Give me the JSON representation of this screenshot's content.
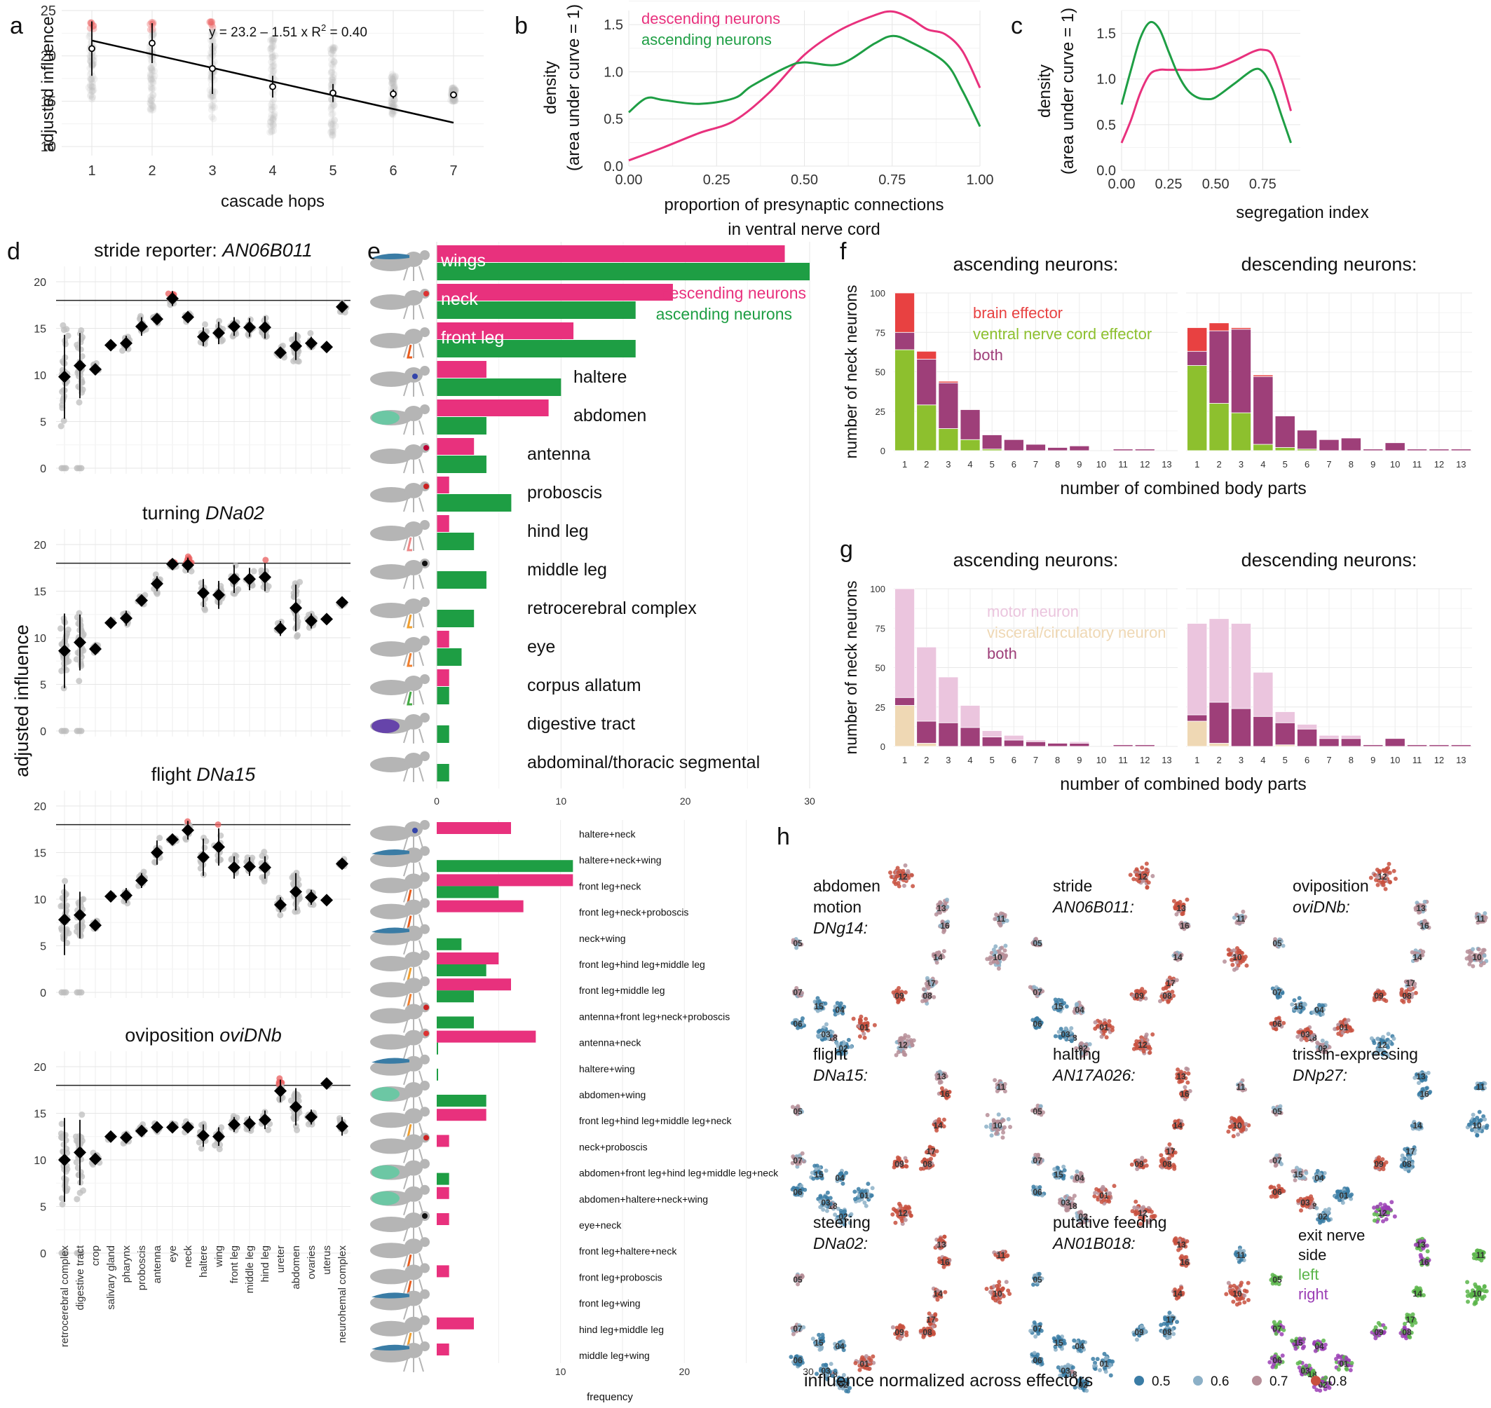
{
  "colors": {
    "descending": "#E8317D",
    "ascending": "#1E9E44",
    "brain_effector": "#E84141",
    "vnc_effector": "#8DC02E",
    "both": "#9E3F79",
    "motor": "#EBC5DE",
    "visceral": "#EFD8B4",
    "points_gray": "#bdbdbd",
    "points_red": "#EA5E5E",
    "umap_05": "#3A7CA5",
    "umap_06": "#8CB0C7",
    "umap_07": "#B68E98",
    "umap_08": "#C8503E",
    "left": "#5BB54A",
    "right": "#9B3FB5"
  },
  "panel_letters": [
    "a",
    "b",
    "c",
    "d",
    "e",
    "f",
    "g",
    "h"
  ],
  "chart_data": [
    {
      "id": "a",
      "type": "scatter",
      "xlabel": "cascade hops",
      "ylabel": "adjusted influence",
      "annotation": {
        "pre": "y = 23.2 – 1.51 x   R",
        "sup": "2",
        "post": " = 0.40"
      },
      "x": [
        1,
        2,
        3,
        4,
        5,
        6,
        7
      ],
      "means": [
        20.8,
        21.4,
        18.6,
        16.6,
        15.9,
        15.8,
        15.7
      ],
      "err": [
        3.0,
        2.2,
        2.8,
        1.2,
        1.0,
        0.5,
        0.3
      ],
      "fit": {
        "intercept": 23.2,
        "slope": -1.51
      },
      "xlim": [
        0.5,
        7.5
      ],
      "ylim": [
        9,
        25
      ],
      "yticks": [
        10,
        15,
        20,
        25
      ]
    },
    {
      "id": "b",
      "type": "line",
      "xlabel": "proportion of presynaptic connections",
      "xlabel2": "in ventral nerve cord",
      "ylabel": "density",
      "ylabel2": "(area under curve = 1)",
      "xlim": [
        0,
        1
      ],
      "ylim": [
        0,
        1.65
      ],
      "xticks": [
        "0.00",
        "0.25",
        "0.50",
        "0.75",
        "1.00"
      ],
      "yticks": [
        "0.0",
        "0.5",
        "1.0",
        "1.5"
      ],
      "series": [
        {
          "name": "descending neurons",
          "x": [
            0,
            0.1,
            0.2,
            0.3,
            0.4,
            0.5,
            0.6,
            0.7,
            0.75,
            0.8,
            0.85,
            0.9,
            0.95,
            1.0
          ],
          "y": [
            0.06,
            0.2,
            0.35,
            0.48,
            0.78,
            1.18,
            1.44,
            1.6,
            1.64,
            1.57,
            1.45,
            1.4,
            1.22,
            0.83
          ]
        },
        {
          "name": "ascending neurons",
          "x": [
            0,
            0.05,
            0.1,
            0.2,
            0.3,
            0.35,
            0.45,
            0.5,
            0.6,
            0.7,
            0.75,
            0.8,
            0.9,
            0.95,
            1.0
          ],
          "y": [
            0.57,
            0.72,
            0.7,
            0.66,
            0.72,
            0.85,
            1.05,
            1.1,
            1.08,
            1.3,
            1.38,
            1.32,
            1.1,
            0.8,
            0.42
          ]
        }
      ]
    },
    {
      "id": "c",
      "type": "line",
      "xlabel": "segregation index",
      "ylabel": "density",
      "ylabel2": "(area under curve = 1)",
      "xlim": [
        0,
        0.95
      ],
      "ylim": [
        0,
        1.75
      ],
      "xticks": [
        "0.00",
        "0.25",
        "0.50",
        "0.75"
      ],
      "yticks": [
        "0.0",
        "0.5",
        "1.0",
        "1.5"
      ],
      "series": [
        {
          "name": "descending",
          "x": [
            0,
            0.05,
            0.1,
            0.15,
            0.2,
            0.25,
            0.3,
            0.4,
            0.5,
            0.6,
            0.7,
            0.75,
            0.8,
            0.85,
            0.9
          ],
          "y": [
            0.3,
            0.55,
            0.85,
            1.05,
            1.1,
            1.1,
            1.1,
            1.1,
            1.12,
            1.2,
            1.3,
            1.32,
            1.27,
            1.0,
            0.65
          ]
        },
        {
          "name": "ascending",
          "x": [
            0,
            0.05,
            0.1,
            0.15,
            0.2,
            0.25,
            0.3,
            0.35,
            0.4,
            0.45,
            0.5,
            0.6,
            0.7,
            0.75,
            0.8,
            0.85,
            0.9
          ],
          "y": [
            0.72,
            1.1,
            1.45,
            1.62,
            1.55,
            1.3,
            1.05,
            0.88,
            0.8,
            0.78,
            0.8,
            0.95,
            1.1,
            1.08,
            0.9,
            0.6,
            0.3
          ]
        }
      ]
    },
    {
      "id": "d",
      "type": "scatter",
      "ylabel": "adjusted influence",
      "threshold": 18,
      "ylim": [
        0,
        20
      ],
      "yticks": [
        0,
        5,
        10,
        15,
        20
      ],
      "categories": [
        "retrocerebral complex",
        "digestive tract",
        "crop",
        "salivary gland",
        "pharynx",
        "proboscis",
        "antenna",
        "eye",
        "neck",
        "haltere",
        "wing",
        "front leg",
        "middle leg",
        "hind leg",
        "ureter",
        "abdomen",
        "ovaries",
        "uterus",
        "neurohemal complex"
      ],
      "plots": [
        {
          "title_plain": "stride reporter: ",
          "title_italic": "AN06B011",
          "means": [
            9.8,
            11.0,
            10.6,
            13.2,
            13.4,
            15.2,
            16.0,
            18.2,
            16.2,
            14.1,
            14.5,
            15.2,
            15.1,
            15.1,
            12.4,
            13.1,
            13.4,
            13.0,
            17.3
          ],
          "err": [
            4.5,
            3.5,
            0.6,
            0,
            0.8,
            1.0,
            0.5,
            0.8,
            0.4,
            1.0,
            1.2,
            1.0,
            1.0,
            1.2,
            0.6,
            1.5,
            0.7,
            0,
            0.5
          ]
        },
        {
          "title_plain": "turning ",
          "title_italic": "DNa02",
          "means": [
            8.6,
            9.5,
            8.8,
            11.6,
            12.1,
            14.0,
            15.8,
            17.9,
            17.8,
            14.8,
            14.6,
            16.3,
            16.3,
            16.5,
            11.0,
            13.2,
            11.8,
            12.0,
            13.8
          ],
          "err": [
            4.0,
            3.0,
            0.5,
            0,
            0.8,
            0.6,
            0.8,
            0.3,
            0.8,
            1.5,
            1.5,
            1.5,
            1.2,
            1.5,
            0.8,
            2.5,
            0.8,
            0,
            0.3
          ]
        },
        {
          "title_plain": "flight ",
          "title_italic": "DNa15",
          "means": [
            7.8,
            8.3,
            7.2,
            10.3,
            10.4,
            12.0,
            15.0,
            16.4,
            17.4,
            14.5,
            15.6,
            13.4,
            13.5,
            13.4,
            9.4,
            10.8,
            10.2,
            9.9,
            13.8
          ],
          "err": [
            3.8,
            2.5,
            0.5,
            0,
            0.8,
            0.8,
            1.3,
            0.3,
            1.0,
            2.0,
            2.0,
            1.2,
            1.0,
            1.2,
            0.8,
            2.0,
            0.8,
            0,
            0.3
          ]
        },
        {
          "title_plain": "oviposition ",
          "title_italic": "oviDNb",
          "means": [
            10.0,
            10.8,
            10.1,
            12.5,
            12.4,
            13.1,
            13.5,
            13.5,
            13.5,
            12.6,
            12.5,
            13.8,
            13.9,
            14.3,
            17.4,
            15.7,
            14.6,
            18.2,
            13.6
          ],
          "err": [
            4.5,
            3.5,
            0.5,
            0,
            0.5,
            0.6,
            0.5,
            0.3,
            0.5,
            1.2,
            1.0,
            0.8,
            0.8,
            1.0,
            1.2,
            2.0,
            0.8,
            0,
            1.0
          ]
        }
      ]
    },
    {
      "id": "e",
      "type": "bar",
      "xlabel": "frequency",
      "legend": [
        "descending neurons",
        "ascending neurons"
      ],
      "top": {
        "categories": [
          "wings",
          "neck",
          "front leg",
          "haltere",
          "abdomen",
          "antenna",
          "proboscis",
          "hind leg",
          "middle leg",
          "retrocerebral complex",
          "eye",
          "corpus allatum",
          "digestive tract",
          "abdominal/thoracic segmental"
        ],
        "inside_label": [
          true,
          true,
          true,
          false,
          false,
          false,
          false,
          false,
          false,
          false,
          false,
          false,
          false,
          false
        ],
        "descending": [
          28,
          19,
          11,
          4,
          9,
          3,
          1,
          1,
          0,
          0,
          1,
          1,
          0,
          0
        ],
        "ascending": [
          30,
          16,
          16,
          10,
          4,
          4,
          6,
          3,
          4,
          3,
          2,
          1,
          1,
          1
        ],
        "xlim": [
          0,
          30
        ],
        "xticks": [
          "0",
          "10",
          "20",
          "30"
        ]
      },
      "bottom": {
        "categories": [
          "haltere+neck",
          "haltere+neck+wing",
          "front leg+neck",
          "front leg+neck+proboscis",
          "neck+wing",
          "front leg+hind leg+middle leg",
          "front leg+middle leg",
          "antenna+front leg+neck+proboscis",
          "antenna+neck",
          "haltere+wing",
          "abdomen+wing",
          "front leg+hind leg+middle leg+neck",
          "neck+proboscis",
          "abdomen+front leg+hind leg+middle leg+neck",
          "abdomen+haltere+neck+wing",
          "eye+neck",
          "front leg+haltere+neck",
          "front leg+proboscis",
          "front leg+wing",
          "hind leg+middle leg",
          "middle leg+wing"
        ],
        "descending": [
          6,
          0,
          11,
          7,
          0,
          5,
          6,
          0,
          8,
          0,
          0,
          4,
          1,
          0,
          1,
          1,
          0,
          1,
          0,
          3,
          1
        ],
        "ascending": [
          0,
          11,
          5,
          0,
          2,
          4,
          3,
          3,
          0,
          0,
          4,
          0,
          0,
          1,
          0,
          0,
          0,
          0,
          0,
          0,
          0
        ],
        "xlim": [
          0,
          27
        ],
        "xticks": [
          "10",
          "20",
          "30"
        ]
      }
    },
    {
      "id": "f",
      "type": "bar",
      "xlabel": "number of combined body parts",
      "ylabel": "number of neck neurons",
      "legend": [
        "brain effector",
        "ventral nerve cord effector",
        "both"
      ],
      "categories": [
        "1",
        "2",
        "3",
        "4",
        "5",
        "6",
        "7",
        "8",
        "9",
        "10",
        "11",
        "12",
        "13"
      ],
      "ylim": [
        0,
        100
      ],
      "yticks": [
        "0",
        "25",
        "50",
        "75",
        "100"
      ],
      "facets": [
        {
          "title": "ascending neurons:",
          "vnc": [
            64,
            29,
            14,
            7,
            1,
            0,
            0,
            0,
            0,
            0,
            0,
            0,
            0
          ],
          "both": [
            11,
            29,
            29,
            19,
            9,
            7,
            4,
            2,
            3,
            0,
            1,
            1,
            0
          ],
          "brain": [
            25,
            5,
            1,
            0,
            0,
            0,
            0,
            0,
            0,
            0,
            0,
            0,
            0
          ]
        },
        {
          "title": "descending neurons:",
          "vnc": [
            54,
            30,
            24,
            4,
            2,
            1,
            0,
            0,
            0,
            0,
            0,
            0,
            0
          ],
          "both": [
            9,
            46,
            53,
            43,
            20,
            12,
            7,
            8,
            1,
            5,
            1,
            1,
            1
          ],
          "brain": [
            15,
            5,
            1,
            1,
            0,
            0,
            0,
            0,
            0,
            0,
            0,
            0,
            0
          ]
        }
      ]
    },
    {
      "id": "g",
      "type": "bar",
      "xlabel": "number of combined body parts",
      "ylabel": "number of neck neurons",
      "legend": [
        "motor neuron",
        "visceral/circulatory neuron",
        "both"
      ],
      "categories": [
        "1",
        "2",
        "3",
        "4",
        "5",
        "6",
        "7",
        "8",
        "9",
        "10",
        "11",
        "12",
        "13"
      ],
      "ylim": [
        0,
        100
      ],
      "yticks": [
        "0",
        "25",
        "50",
        "75",
        "100"
      ],
      "facets": [
        {
          "title": "ascending neurons:",
          "visceral": [
            26,
            2,
            0,
            0,
            0,
            0,
            0,
            0,
            0,
            0,
            0,
            0,
            0
          ],
          "both": [
            5,
            14,
            15,
            12,
            6,
            4,
            3,
            2,
            2,
            0,
            1,
            1,
            0
          ],
          "motor": [
            69,
            47,
            29,
            14,
            4,
            3,
            1,
            0,
            1,
            0,
            0,
            0,
            0
          ]
        },
        {
          "title": "descending neurons:",
          "visceral": [
            16,
            2,
            0,
            0,
            1,
            0,
            0,
            0,
            0,
            0,
            0,
            0,
            0
          ],
          "both": [
            4,
            26,
            24,
            19,
            14,
            11,
            5,
            5,
            1,
            5,
            1,
            1,
            1
          ],
          "motor": [
            58,
            53,
            54,
            28,
            7,
            3,
            2,
            2,
            0,
            0,
            0,
            0,
            0
          ]
        }
      ]
    },
    {
      "id": "h",
      "type": "scatter",
      "legend_title": "influence normalized across effectors",
      "legend_values": [
        "0.5",
        "0.6",
        "0.7",
        "0.8"
      ],
      "side_legend": {
        "title": [
          "exit nerve",
          "side"
        ],
        "left": "left",
        "right": "right"
      },
      "cluster_labels": [
        "01",
        "02",
        "03",
        "04",
        "05",
        "06",
        "07",
        "08",
        "09",
        "10",
        "11",
        "12",
        "13",
        "14",
        "15",
        "16",
        "17",
        "18"
      ],
      "panels": [
        {
          "line1": "abdomen",
          "line2": "motion",
          "line3": "DNg14:"
        },
        {
          "line1": "stride",
          "line2": "AN06B011:"
        },
        {
          "line1": "oviposition",
          "line2": "oviDNb:"
        },
        {
          "line1": "flight",
          "line2": "DNa15:"
        },
        {
          "line1": "halting",
          "line2": "AN17A026:"
        },
        {
          "line1": "trissin-expressing",
          "line2": "DNp27:"
        },
        {
          "line1": "steering",
          "line2": "DNa02:"
        },
        {
          "line1": "putative feeding",
          "line2": "AN01B018:"
        }
      ]
    }
  ]
}
